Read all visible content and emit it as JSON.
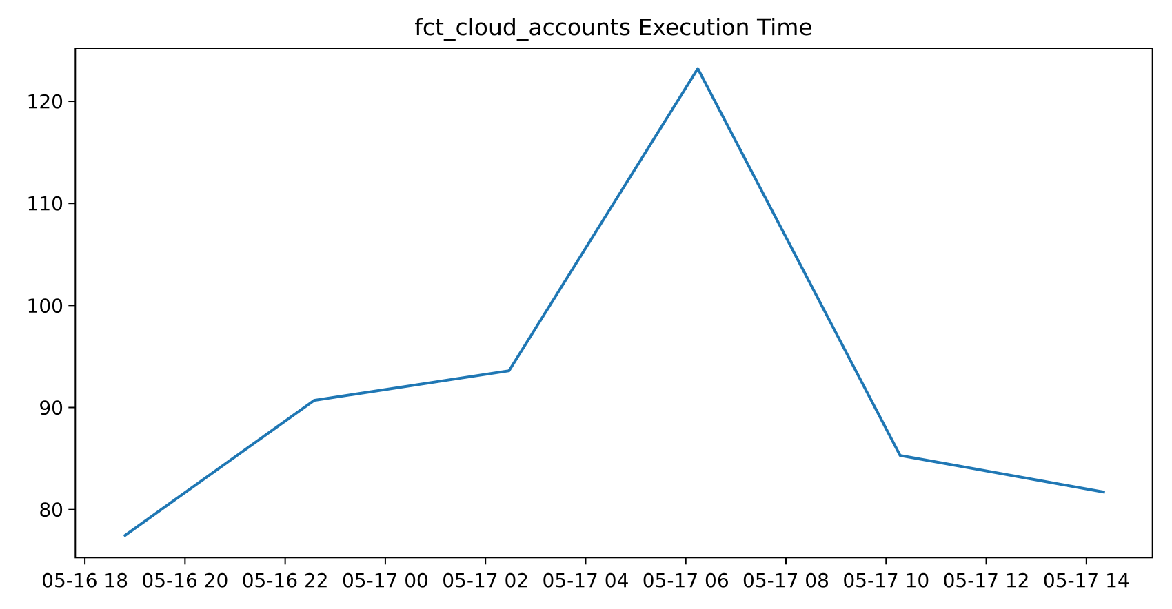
{
  "chart_data": {
    "type": "line",
    "title": "fct_cloud_accounts Execution Time",
    "xlabel": "",
    "ylabel": "",
    "grid": false,
    "legend": null,
    "line_color": "#1f77b4",
    "background_color": "#ffffff",
    "axis_color": "#000000",
    "xlim_hours": [
      -0.19,
      21.32
    ],
    "ylim": [
      75.3,
      125.2
    ],
    "x_ticks": [
      {
        "label": "05-16 18",
        "hours": 0
      },
      {
        "label": "05-16 20",
        "hours": 2
      },
      {
        "label": "05-16 22",
        "hours": 4
      },
      {
        "label": "05-17 00",
        "hours": 6
      },
      {
        "label": "05-17 02",
        "hours": 8
      },
      {
        "label": "05-17 04",
        "hours": 10
      },
      {
        "label": "05-17 06",
        "hours": 12
      },
      {
        "label": "05-17 08",
        "hours": 14
      },
      {
        "label": "05-17 10",
        "hours": 16
      },
      {
        "label": "05-17 12",
        "hours": 18
      },
      {
        "label": "05-17 14",
        "hours": 20
      }
    ],
    "y_ticks": [
      {
        "label": "80",
        "value": 80
      },
      {
        "label": "90",
        "value": 90
      },
      {
        "label": "100",
        "value": 100
      },
      {
        "label": "110",
        "value": 110
      },
      {
        "label": "120",
        "value": 120
      }
    ],
    "series": [
      {
        "name": "execution_time",
        "points": [
          {
            "time": "05-16 18:47",
            "hours": 0.78,
            "value": 77.4
          },
          {
            "time": "05-16 22:35",
            "hours": 4.58,
            "value": 90.7
          },
          {
            "time": "05-17 02:28",
            "hours": 8.47,
            "value": 93.6
          },
          {
            "time": "05-17 06:14",
            "hours": 12.24,
            "value": 123.2
          },
          {
            "time": "05-17 10:17",
            "hours": 16.28,
            "value": 85.3
          },
          {
            "time": "05-17 14:22",
            "hours": 20.37,
            "value": 81.7
          }
        ]
      }
    ]
  }
}
